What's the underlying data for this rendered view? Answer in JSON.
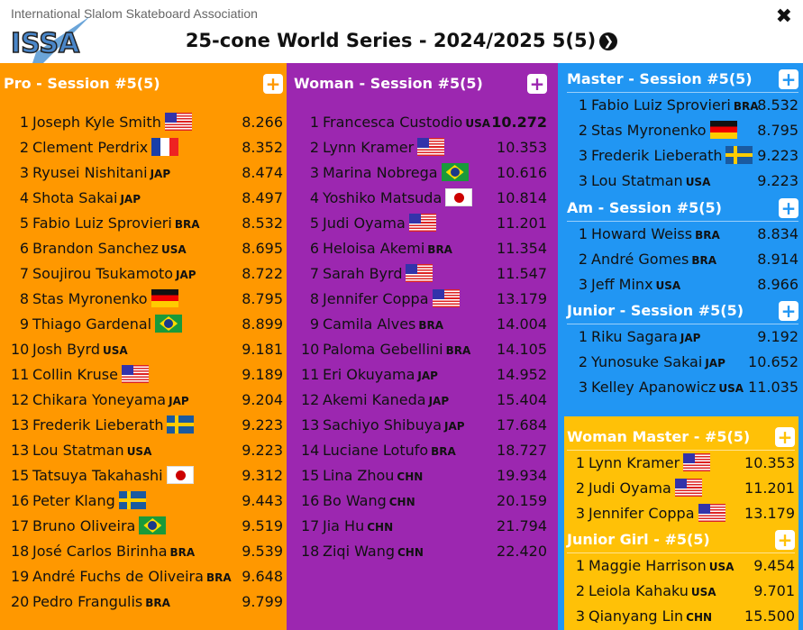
{
  "header": {
    "org": "International Slalom Skateboard Association",
    "logo_text": "ISSA",
    "title": "25-cone World Series - 2024/2025 5(5)",
    "close": "✖",
    "next": "❯"
  },
  "colors": {
    "pro": "#FF9800",
    "woman": "#9C27B0",
    "right": "#2196F3",
    "yellow": "#FFC107"
  },
  "sections": {
    "pro": {
      "title": "Pro - Session #5(5)",
      "plus": "+",
      "rows": [
        {
          "rank": "1",
          "name": "Joseph Kyle Smith",
          "flag": "usa",
          "time": "8.266"
        },
        {
          "rank": "2",
          "name": "Clement Perdrix",
          "flag": "fra",
          "time": "8.352"
        },
        {
          "rank": "3",
          "name": "Ryusei Nishitani",
          "cc": "JAP",
          "time": "8.474"
        },
        {
          "rank": "4",
          "name": "Shota Sakai",
          "cc": "JAP",
          "time": "8.497"
        },
        {
          "rank": "5",
          "name": "Fabio Luiz Sprovieri",
          "cc": "BRA",
          "time": "8.532"
        },
        {
          "rank": "6",
          "name": "Brandon Sanchez",
          "cc": "USA",
          "time": "8.695"
        },
        {
          "rank": "7",
          "name": "Soujirou Tsukamoto",
          "cc": "JAP",
          "time": "8.722"
        },
        {
          "rank": "8",
          "name": "Stas Myronenko",
          "flag": "ger",
          "time": "8.795"
        },
        {
          "rank": "9",
          "name": "Thiago Gardenal",
          "flag": "bra",
          "time": "8.899"
        },
        {
          "rank": "10",
          "name": "Josh Byrd",
          "cc": "USA",
          "time": "9.181"
        },
        {
          "rank": "11",
          "name": "Collin Kruse",
          "flag": "usa",
          "time": "9.189"
        },
        {
          "rank": "12",
          "name": "Chikara Yoneyama",
          "cc": "JAP",
          "time": "9.204"
        },
        {
          "rank": "13",
          "name": "Frederik Lieberath",
          "flag": "swe",
          "time": "9.223"
        },
        {
          "rank": "13",
          "name": "Lou Statman",
          "cc": "USA",
          "time": "9.223"
        },
        {
          "rank": "15",
          "name": "Tatsuya Takahashi",
          "flag": "jpn",
          "time": "9.312"
        },
        {
          "rank": "16",
          "name": "Peter Klang",
          "flag": "swe",
          "time": "9.443"
        },
        {
          "rank": "17",
          "name": "Bruno Oliveira",
          "flag": "bra",
          "time": "9.519"
        },
        {
          "rank": "18",
          "name": "José Carlos Birinha",
          "cc": "BRA",
          "time": "9.539"
        },
        {
          "rank": "19",
          "name": "André Fuchs de Oliveira",
          "cc": "BRA",
          "time": "9.648"
        },
        {
          "rank": "20",
          "name": "Pedro Frangulis",
          "cc": "BRA",
          "time": "9.799"
        }
      ]
    },
    "woman": {
      "title": "Woman - Session #5(5)",
      "plus": "+",
      "rows": [
        {
          "rank": "1",
          "name": "Francesca Custodio",
          "cc": "USA",
          "time": "10.272",
          "best": true
        },
        {
          "rank": "2",
          "name": "Lynn Kramer",
          "flag": "usa",
          "time": "10.353"
        },
        {
          "rank": "3",
          "name": "Marina Nobrega",
          "flag": "bra",
          "time": "10.616"
        },
        {
          "rank": "4",
          "name": "Yoshiko Matsuda",
          "flag": "jpn",
          "time": "10.814"
        },
        {
          "rank": "5",
          "name": "Judi Oyama",
          "flag": "usa",
          "time": "11.201"
        },
        {
          "rank": "6",
          "name": "Heloisa Akemi",
          "cc": "BRA",
          "time": "11.354"
        },
        {
          "rank": "7",
          "name": "Sarah Byrd",
          "flag": "usa",
          "time": "11.547"
        },
        {
          "rank": "8",
          "name": "Jennifer Coppa",
          "flag": "usa",
          "time": "13.179"
        },
        {
          "rank": "9",
          "name": "Camila Alves",
          "cc": "BRA",
          "time": "14.004"
        },
        {
          "rank": "10",
          "name": "Paloma Gebellini",
          "cc": "BRA",
          "time": "14.105"
        },
        {
          "rank": "11",
          "name": "Eri Okuyama",
          "cc": "JAP",
          "time": "14.952"
        },
        {
          "rank": "12",
          "name": "Akemi Kaneda",
          "cc": "JAP",
          "time": "15.404"
        },
        {
          "rank": "13",
          "name": "Sachiyo Shibuya",
          "cc": "JAP",
          "time": "17.684"
        },
        {
          "rank": "14",
          "name": "Luciane Lotufo",
          "cc": "BRA",
          "time": "18.727"
        },
        {
          "rank": "15",
          "name": "Lina Zhou",
          "cc": "CHN",
          "time": "19.934"
        },
        {
          "rank": "16",
          "name": "Bo Wang",
          "cc": "CHN",
          "time": "20.159"
        },
        {
          "rank": "17",
          "name": "Jia Hu",
          "cc": "CHN",
          "time": "21.794"
        },
        {
          "rank": "18",
          "name": "Ziqi Wang",
          "cc": "CHN",
          "time": "22.420"
        }
      ]
    },
    "master": {
      "title": "Master - Session #5(5)",
      "plus": "+",
      "rows": [
        {
          "rank": "1",
          "name": "Fabio Luiz Sprovieri",
          "cc": "BRA",
          "time": "8.532"
        },
        {
          "rank": "2",
          "name": "Stas Myronenko",
          "flag": "ger",
          "time": "8.795"
        },
        {
          "rank": "3",
          "name": "Frederik Lieberath",
          "flag": "swe",
          "time": "9.223"
        },
        {
          "rank": "3",
          "name": "Lou Statman",
          "cc": "USA",
          "time": "9.223"
        }
      ]
    },
    "am": {
      "title": "Am - Session #5(5)",
      "plus": "+",
      "rows": [
        {
          "rank": "1",
          "name": "Howard Weiss",
          "cc": "BRA",
          "time": "8.834"
        },
        {
          "rank": "2",
          "name": "André Gomes",
          "cc": "BRA",
          "time": "8.914"
        },
        {
          "rank": "3",
          "name": "Jeff Minx",
          "cc": "USA",
          "time": "8.966"
        }
      ]
    },
    "junior": {
      "title": "Junior - Session #5(5)",
      "plus": "+",
      "rows": [
        {
          "rank": "1",
          "name": "Riku Sagara",
          "cc": "JAP",
          "time": "9.192"
        },
        {
          "rank": "2",
          "name": "Yunosuke Sakai",
          "cc": "JAP",
          "time": "10.652"
        },
        {
          "rank": "3",
          "name": "Kelley Apanowicz",
          "cc": "USA",
          "time": "11.035"
        }
      ]
    },
    "woman_master": {
      "title": "Woman Master - #5(5)",
      "plus": "+",
      "rows": [
        {
          "rank": "1",
          "name": "Lynn Kramer",
          "flag": "usa",
          "time": "10.353"
        },
        {
          "rank": "2",
          "name": "Judi Oyama",
          "flag": "usa",
          "time": "11.201"
        },
        {
          "rank": "3",
          "name": "Jennifer Coppa",
          "flag": "usa",
          "time": "13.179"
        }
      ]
    },
    "junior_girl": {
      "title": "Junior Girl - #5(5)",
      "plus": "+",
      "rows": [
        {
          "rank": "1",
          "name": "Maggie Harrison",
          "cc": "USA",
          "time": "9.454"
        },
        {
          "rank": "2",
          "name": "Leiola Kahaku",
          "cc": "USA",
          "time": "9.701"
        },
        {
          "rank": "3",
          "name": "Qianyang Lin",
          "cc": "CHN",
          "time": "15.500"
        }
      ]
    }
  }
}
